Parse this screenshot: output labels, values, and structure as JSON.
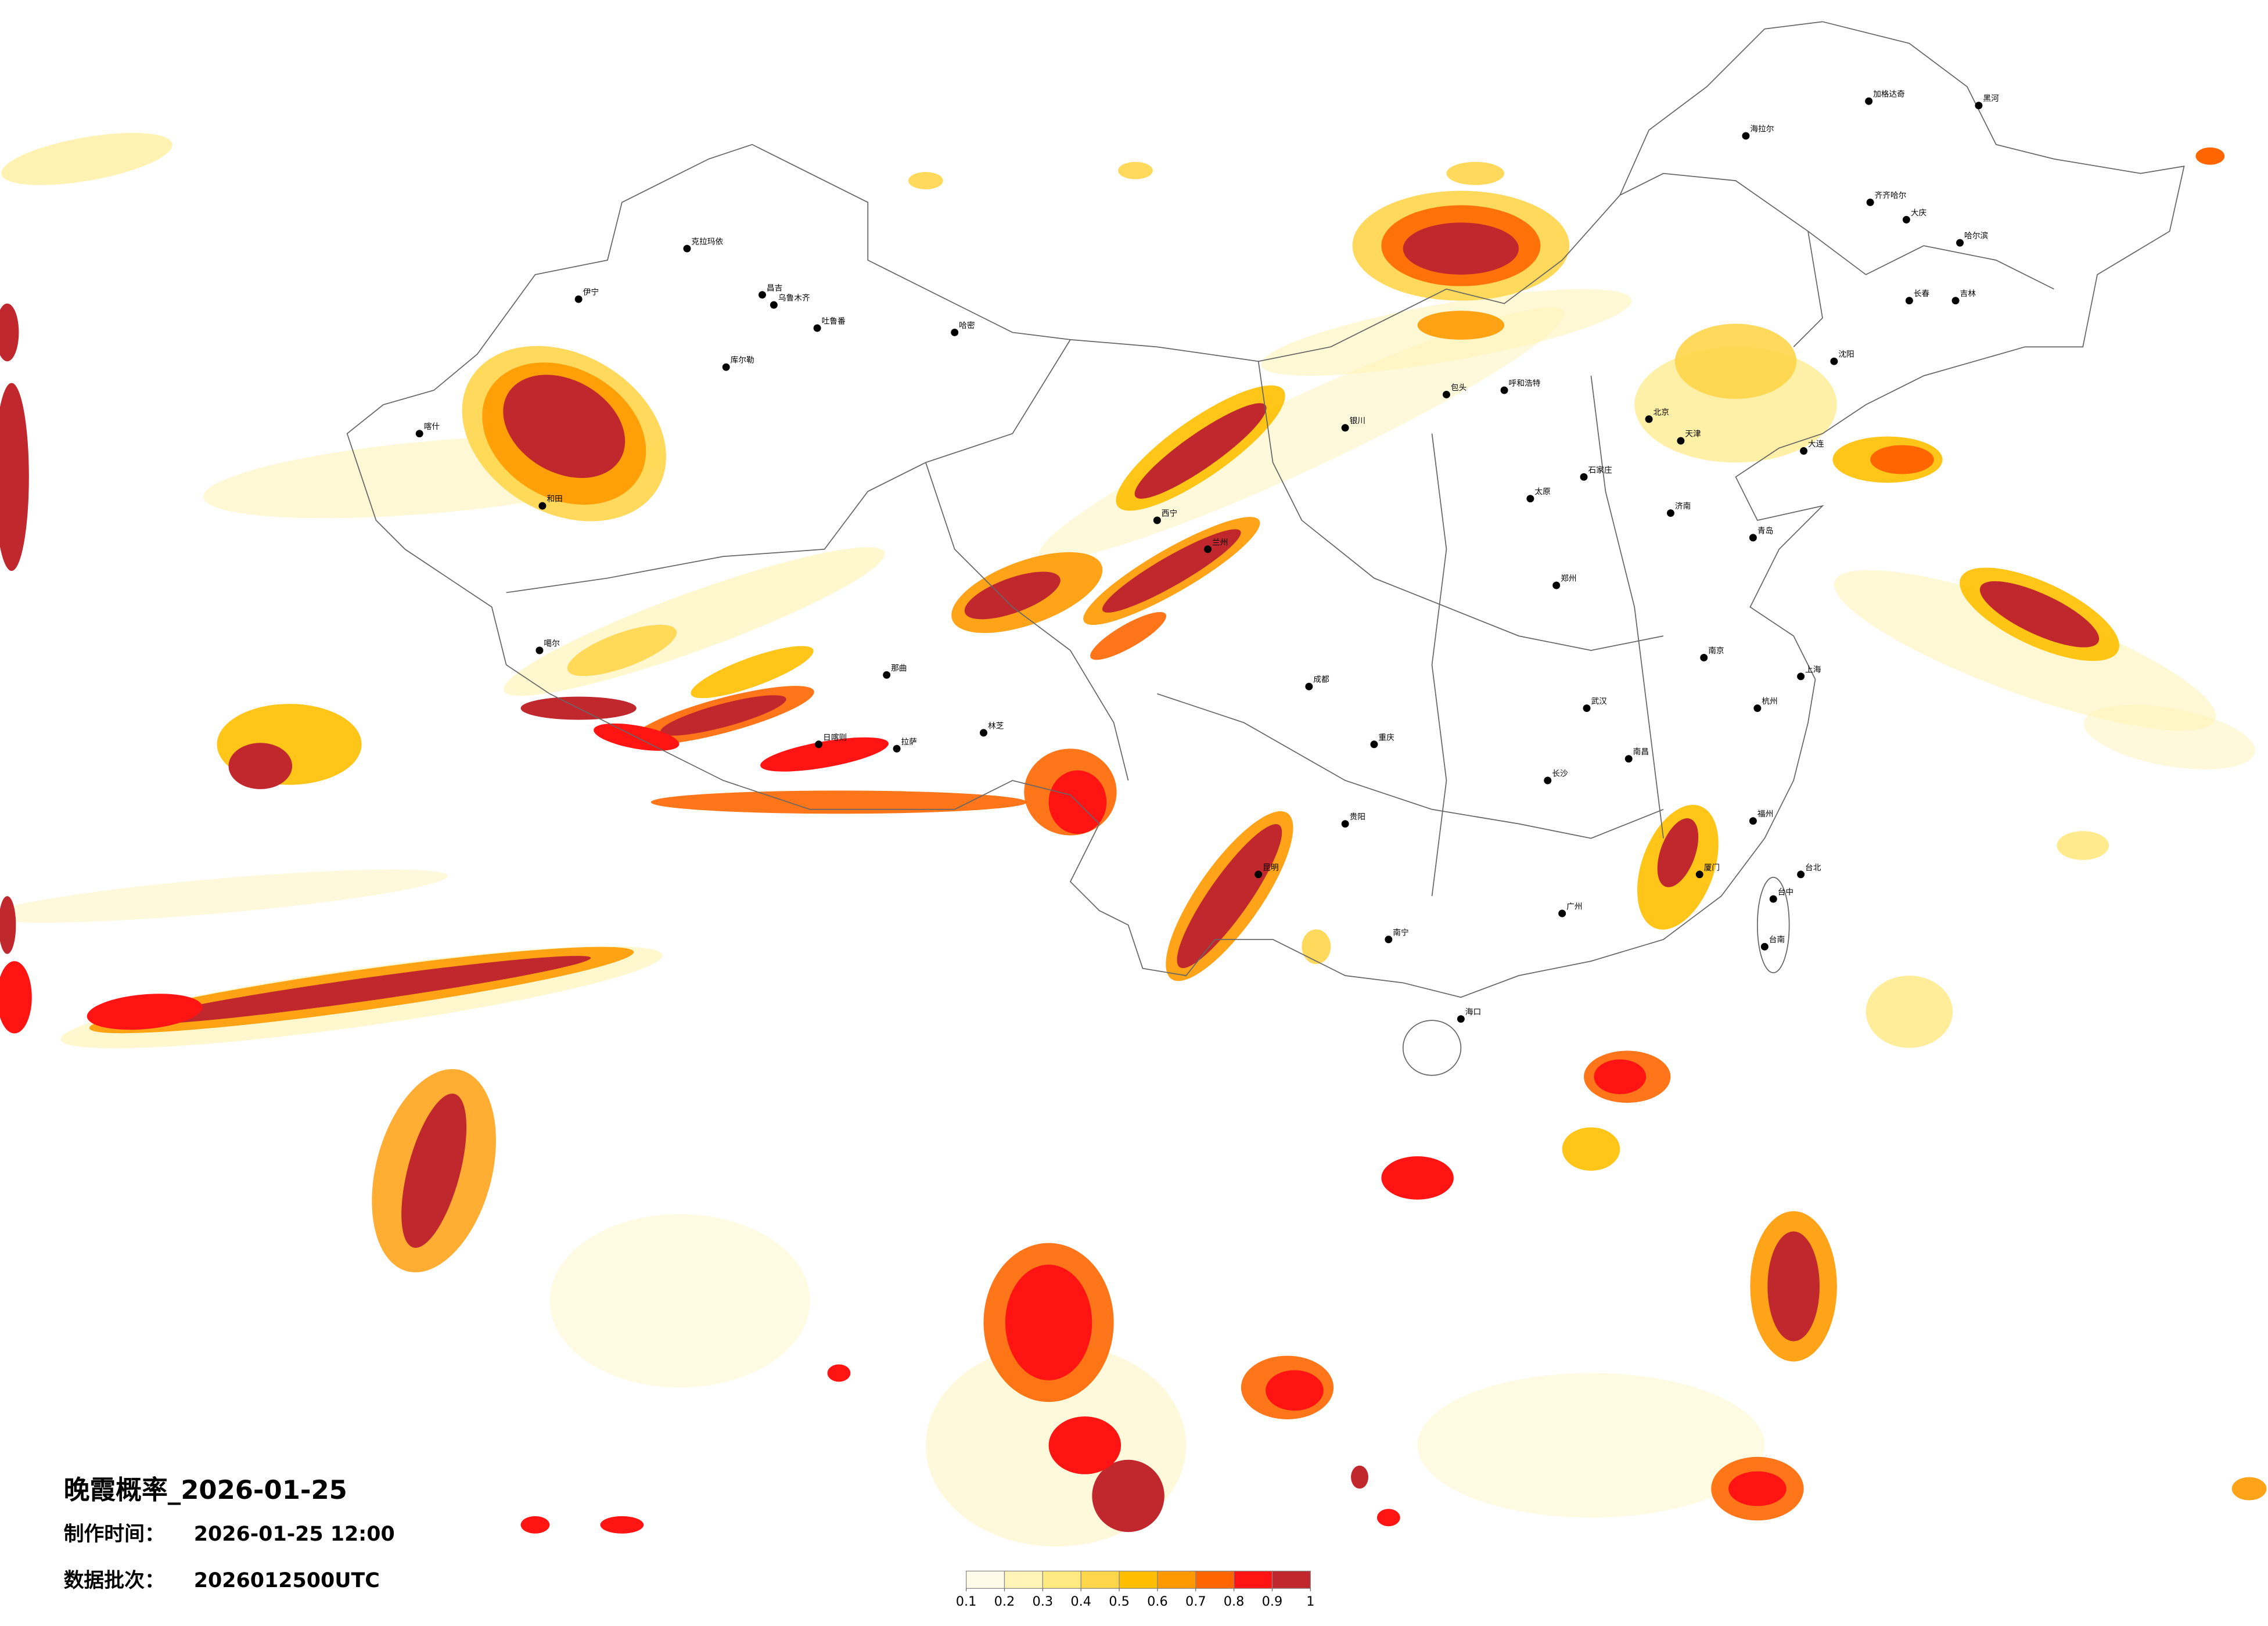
{
  "title": "晚霞概率_2026-01-25",
  "produced": {
    "label": "制作时间：",
    "value": "2026-01-25 12:00"
  },
  "batch": {
    "label": "数据批次：",
    "value": "2026012500UTC"
  },
  "colorbar": {
    "ticks": [
      0.1,
      0.2,
      0.3,
      0.4,
      0.5,
      0.6,
      0.7,
      0.8,
      0.9,
      1
    ],
    "colors": [
      "#fffbe8",
      "#fff4b8",
      "#ffe981",
      "#ffd54a",
      "#ffbf00",
      "#ff9900",
      "#ff6600",
      "#ff1414",
      "#c0282e"
    ]
  },
  "cities": [
    "克拉玛依",
    "伊宁",
    "昌吉",
    "乌鲁木齐",
    "吐鲁番",
    "库尔勒",
    "哈密",
    "喀什",
    "和田",
    "噶尔",
    "海拉尔",
    "加格达奇",
    "黑河",
    "齐齐哈尔",
    "大庆",
    "哈尔滨",
    "长春",
    "吉林",
    "沈阳",
    "大连",
    "北京",
    "天津",
    "石家庄",
    "太原",
    "呼和浩特",
    "包头",
    "银川",
    "兰州",
    "西宁",
    "成都",
    "重庆",
    "贵阳",
    "昆明",
    "南宁",
    "海口",
    "广州",
    "福州",
    "厦门",
    "台北",
    "台中",
    "台南",
    "上海",
    "杭州",
    "南京",
    "武汉",
    "长沙",
    "南昌",
    "郑州",
    "济南",
    "青岛",
    "拉萨",
    "日喀则",
    "林芝",
    "那曲"
  ]
}
